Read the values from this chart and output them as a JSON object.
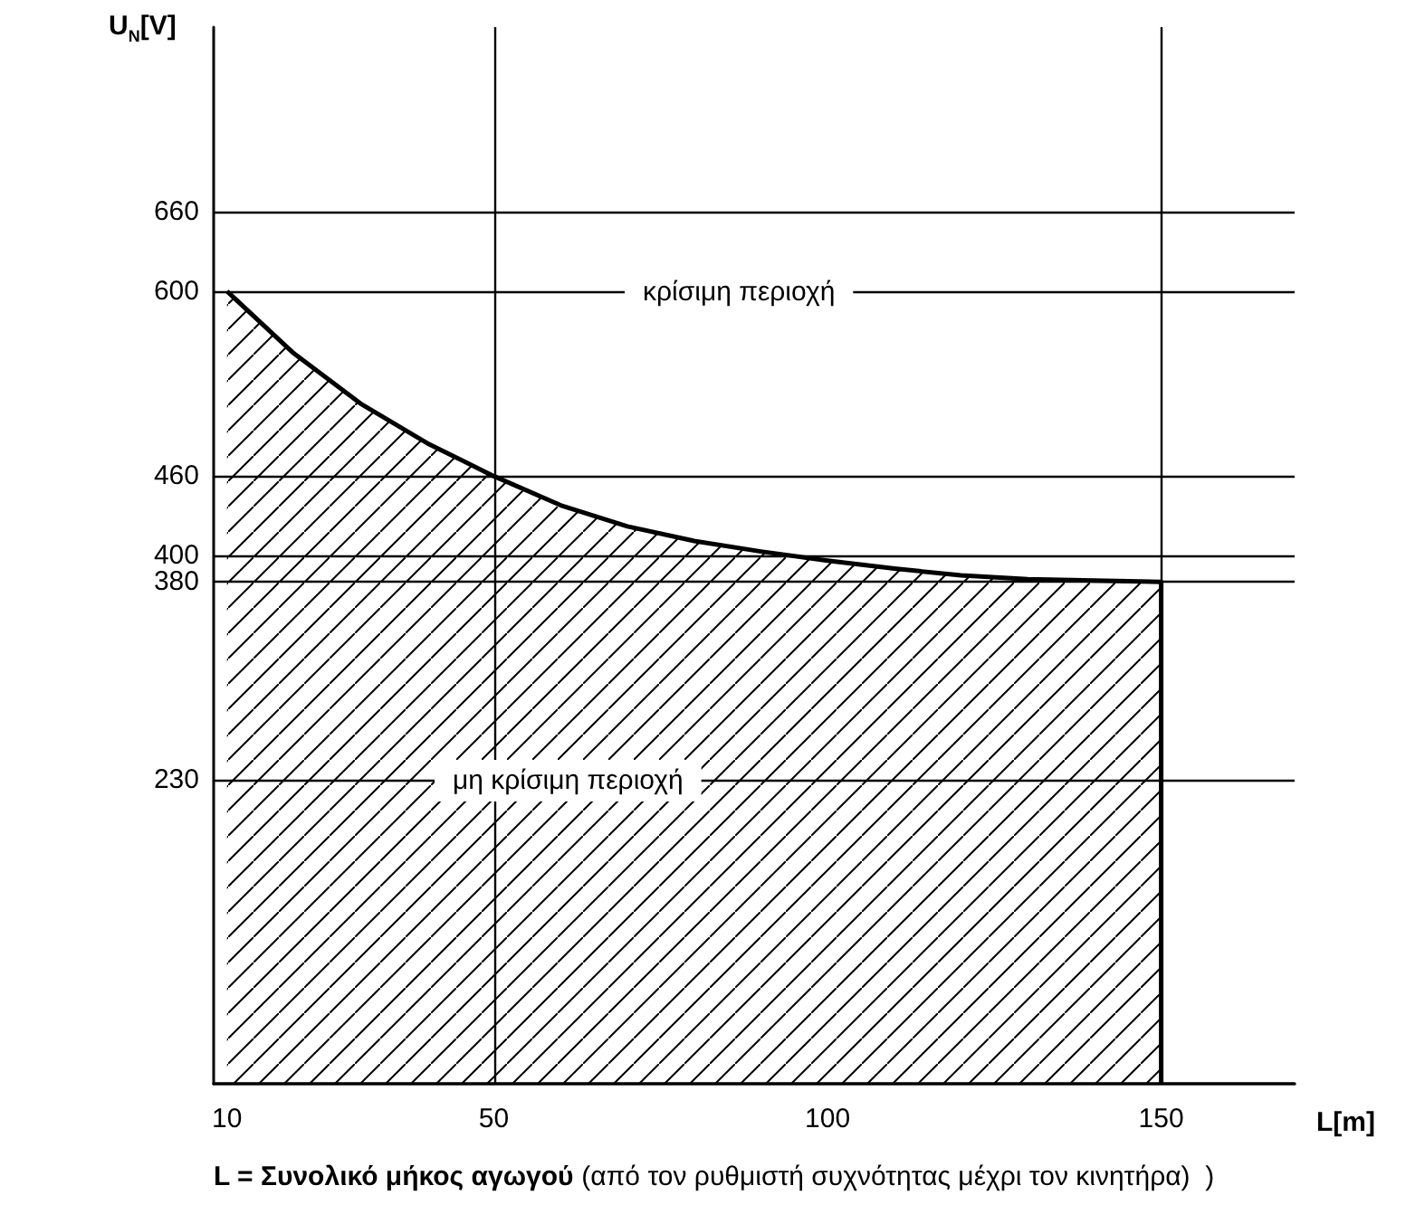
{
  "chart_data": {
    "type": "area",
    "ylabel": "U$_{N}$[V]",
    "xlabel": "L[m]",
    "xlim": [
      8,
      170
    ],
    "xticks": [
      10,
      50,
      100,
      150
    ],
    "ylim": [
      0,
      800
    ],
    "yticks": [
      230,
      380,
      400,
      460,
      600,
      660
    ],
    "grid": "y",
    "series": [
      {
        "color": "#000000",
        "x": [
          10,
          20,
          30,
          40,
          50,
          60,
          70,
          80,
          90,
          100,
          110,
          120,
          130,
          140,
          150,
          150
        ],
        "values": [
          600,
          553,
          515,
          485,
          460,
          438,
          422,
          411,
          403,
          396,
          390,
          385,
          382,
          381,
          380,
          0
        ]
      }
    ],
    "ref_lines": [
      {
        "axis": "x",
        "value": 50
      },
      {
        "axis": "x",
        "value": 150
      }
    ],
    "annotations": [
      "κρίσιμη περιοχή",
      "μη κρίσιμη περιοχή",
      "L = Συνολικό μήκος αγωγού",
      "(από τον ρυθμιστή συχνότητας μέχρι τον κινητήρα)  )"
    ]
  }
}
